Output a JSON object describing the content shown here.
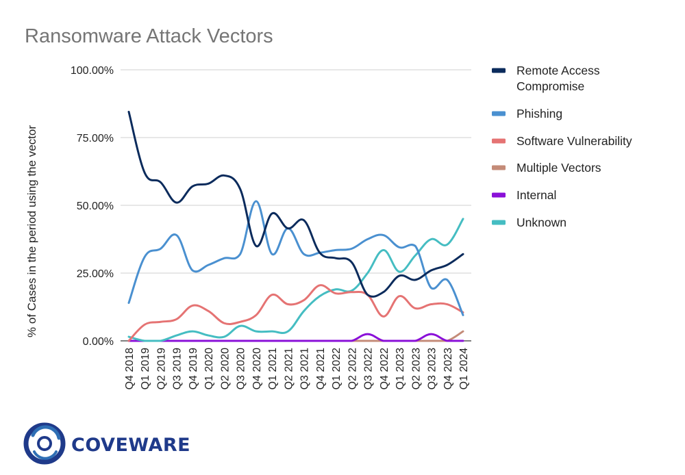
{
  "chart_data": {
    "type": "line",
    "title": "Ransomware Attack Vectors",
    "xlabel": "",
    "ylabel": "% of Cases in the period using the vector",
    "ylim": [
      0,
      100
    ],
    "yticks": [
      "0.00%",
      "25.00%",
      "50.00%",
      "75.00%",
      "100.00%"
    ],
    "grid": true,
    "legend_position": "right",
    "categories": [
      "Q4 2018",
      "Q1 2019",
      "Q2 2019",
      "Q3 2019",
      "Q4 2019",
      "Q1 2020",
      "Q2 2020",
      "Q3 2020",
      "Q4 2020",
      "Q1 2021",
      "Q2 2021",
      "Q3 2021",
      "Q4 2021",
      "Q1 2022",
      "Q2 2022",
      "Q3 2022",
      "Q4 2022",
      "Q1 2023",
      "Q2 2023",
      "Q3 2023",
      "Q4 2023",
      "Q1 2024"
    ],
    "series": [
      {
        "name": "Remote Access\nCompromise",
        "color": "#0b2b5c",
        "values": [
          84.5,
          62,
          58.5,
          51,
          57,
          58,
          61,
          56,
          35,
          47,
          41.5,
          44.5,
          32.5,
          30.5,
          29,
          17,
          18,
          24,
          22.5,
          26,
          28,
          32
        ]
      },
      {
        "name": "Phishing",
        "color": "#4a90d0",
        "values": [
          14,
          31,
          34,
          39,
          26,
          28,
          30.5,
          32,
          51.5,
          32,
          41.5,
          32,
          32.5,
          33.5,
          34,
          37.5,
          39,
          34.5,
          35,
          19.5,
          22.5,
          9.5
        ]
      },
      {
        "name": "Software Vulnerability",
        "color": "#e57373",
        "values": [
          0,
          6,
          7,
          8,
          13,
          11,
          6.5,
          7,
          9.5,
          17,
          13.5,
          15,
          20.5,
          17.5,
          18,
          17,
          9,
          16.5,
          12,
          13.5,
          13.5,
          10.5
        ]
      },
      {
        "name": "Multiple Vectors",
        "color": "#c48b78",
        "values": [
          0,
          0,
          0,
          0,
          0,
          0,
          0,
          0,
          0,
          0,
          0,
          0,
          0,
          0,
          0,
          0,
          0,
          0,
          0,
          0,
          0,
          3.5
        ]
      },
      {
        "name": "Internal",
        "color": "#8a10d8",
        "values": [
          0,
          0,
          0,
          0,
          0,
          0,
          0,
          0,
          0,
          0,
          0,
          0,
          0,
          0,
          0,
          2.5,
          0,
          0,
          0,
          2.5,
          0,
          0
        ]
      },
      {
        "name": "Unknown",
        "color": "#45bdc2",
        "values": [
          1.5,
          0,
          0,
          2,
          3.5,
          2,
          1.5,
          5.5,
          3.5,
          3.5,
          3.5,
          11,
          16.5,
          19,
          18.5,
          25,
          33.5,
          25.5,
          31.5,
          37.5,
          35.5,
          45
        ]
      }
    ]
  },
  "logo": {
    "text": "COVEWARE",
    "primary_color": "#1f3a8a",
    "accent_color": "#2f6fb5"
  }
}
